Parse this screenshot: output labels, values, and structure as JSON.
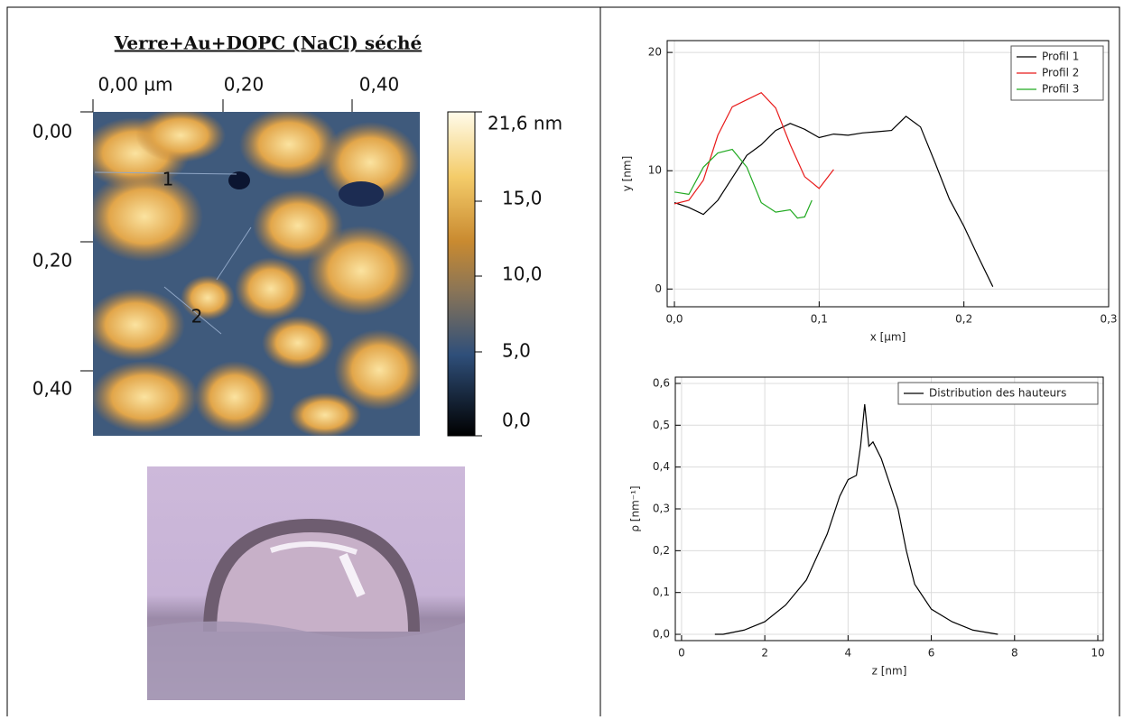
{
  "title": "Verre+Au+DOPC (NaCl) séché",
  "afm": {
    "x_ticks": [
      "0,00 µm",
      "0,20",
      "0,40"
    ],
    "y_ticks": [
      "0,00",
      "0,20",
      "0,40"
    ],
    "colorbar_ticks": [
      "21,6 nm",
      "15,0",
      "10,0",
      "5,0",
      "0,0"
    ],
    "profile_markers": [
      "1",
      "2"
    ]
  },
  "chart_data": [
    {
      "type": "line",
      "x_label": "x [µm]",
      "y_label": "y [nm]",
      "xlim": [
        -0.005,
        0.3
      ],
      "ylim": [
        -1.5,
        21
      ],
      "xticks": [
        {
          "value": 0,
          "label": "0,0"
        },
        {
          "value": 0.1,
          "label": "0,1"
        },
        {
          "value": 0.2,
          "label": "0,2"
        },
        {
          "value": 0.3,
          "label": "0,3"
        }
      ],
      "yticks": [
        0,
        10,
        20
      ],
      "grid": true,
      "legend": "upper right",
      "series": [
        {
          "name": "Profil 1",
          "color": "#000000",
          "x": [
            0,
            0.01,
            0.02,
            0.03,
            0.04,
            0.05,
            0.06,
            0.07,
            0.08,
            0.09,
            0.1,
            0.11,
            0.12,
            0.13,
            0.14,
            0.15,
            0.16,
            0.17,
            0.18,
            0.19,
            0.2,
            0.21,
            0.22,
            0.218
          ],
          "values": [
            7.3,
            6.9,
            6.3,
            7.5,
            9.4,
            11.3,
            12.2,
            13.4,
            14.0,
            13.5,
            12.8,
            13.1,
            13.0,
            13.2,
            13.3,
            13.4,
            14.6,
            13.7,
            10.7,
            7.6,
            5.3,
            2.7,
            0.2,
            0.7
          ]
        },
        {
          "name": "Profil 2",
          "color": "#e81a1a",
          "x": [
            0,
            0.01,
            0.02,
            0.03,
            0.04,
            0.05,
            0.06,
            0.07,
            0.08,
            0.09,
            0.1,
            0.11
          ],
          "values": [
            7.2,
            7.5,
            9.2,
            13.0,
            15.4,
            16.0,
            16.6,
            15.3,
            12.2,
            9.5,
            8.5,
            10.1
          ]
        },
        {
          "name": "Profil 3",
          "color": "#22aa22",
          "x": [
            0,
            0.01,
            0.02,
            0.03,
            0.04,
            0.05,
            0.06,
            0.07,
            0.08,
            0.085,
            0.09,
            0.095
          ],
          "values": [
            8.2,
            8.0,
            10.3,
            11.5,
            11.8,
            10.3,
            7.3,
            6.5,
            6.7,
            6.0,
            6.1,
            7.5
          ]
        }
      ]
    },
    {
      "type": "line",
      "x_label": "z [nm]",
      "y_label": "ρ [nm⁻¹]",
      "xlim": [
        -0.15,
        10.13
      ],
      "ylim": [
        -0.015,
        0.615
      ],
      "xticks": [
        0,
        2,
        4,
        6,
        8,
        10
      ],
      "yticks": [
        {
          "value": 0,
          "label": "0,0"
        },
        {
          "value": 0.1,
          "label": "0,1"
        },
        {
          "value": 0.2,
          "label": "0,2"
        },
        {
          "value": 0.3,
          "label": "0,3"
        },
        {
          "value": 0.4,
          "label": "0,4"
        },
        {
          "value": 0.5,
          "label": "0,5"
        },
        {
          "value": 0.6,
          "label": "0,6"
        }
      ],
      "grid": true,
      "legend": "upper right",
      "series": [
        {
          "name": "Distribution des hauteurs",
          "color": "#000000",
          "x": [
            0.8,
            1,
            1.5,
            2,
            2.5,
            3,
            3.5,
            3.8,
            4,
            4.2,
            4.3,
            4.4,
            4.5,
            4.6,
            4.8,
            5,
            5.2,
            5.4,
            5.6,
            6,
            6.5,
            7,
            7.6
          ],
          "values": [
            0,
            0,
            0.01,
            0.03,
            0.07,
            0.13,
            0.24,
            0.33,
            0.37,
            0.38,
            0.45,
            0.55,
            0.45,
            0.46,
            0.42,
            0.36,
            0.3,
            0.2,
            0.12,
            0.06,
            0.03,
            0.01,
            0
          ]
        }
      ]
    }
  ]
}
